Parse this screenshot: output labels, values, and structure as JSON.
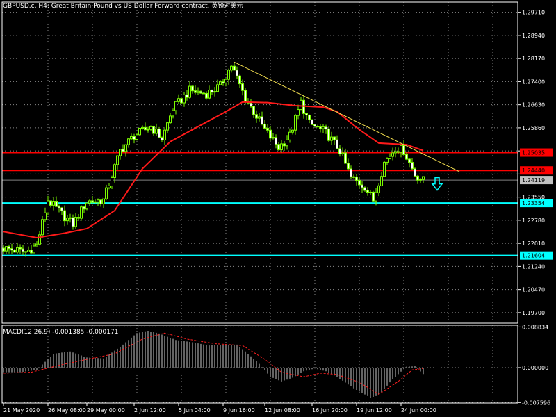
{
  "header": {
    "title": "GBPUSD.c, H4:  Great Britain Pound vs US Dollar Forward contract, 英镑对美元"
  },
  "chart_data": [
    {
      "type": "candlestick",
      "title": "GBPUSD.c, H4:  Great Britain Pound vs US Dollar Forward contract, 英镑对美元",
      "ylim": [
        1.1935,
        1.3005
      ],
      "grid": true,
      "y_ticks": [
        {
          "value": 1.2971,
          "label": "1.29710"
        },
        {
          "value": 1.2894,
          "label": "1.28940"
        },
        {
          "value": 1.2817,
          "label": "1.28170"
        },
        {
          "value": 1.274,
          "label": "1.27400"
        },
        {
          "value": 1.2663,
          "label": "1.26630"
        },
        {
          "value": 1.2586,
          "label": "1.25860"
        },
        {
          "value": 1.2509,
          "label": ""
        },
        {
          "value": 1.2432,
          "label": ""
        },
        {
          "value": 1.2355,
          "label": "1.23550"
        },
        {
          "value": 1.2278,
          "label": "1.22780"
        },
        {
          "value": 1.2201,
          "label": "1.22010"
        },
        {
          "value": 1.2124,
          "label": "1.21240"
        },
        {
          "value": 1.2047,
          "label": "1.20470"
        },
        {
          "value": 1.197,
          "label": "1.19700"
        }
      ],
      "x_ticks": [
        "21 May 2020",
        "26 May 08:00",
        "29 May 00:00",
        "2 Jun 12:00",
        "5 Jun 04:00",
        "9 Jun 16:00",
        "12 Jun 08:00",
        "16 Jun 20:00",
        "19 Jun 12:00",
        "24 Jun 00:00"
      ],
      "close_path": [
        {
          "bar": 0,
          "price": 1.2185
        },
        {
          "bar": 8,
          "price": 1.2172
        },
        {
          "bar": 12,
          "price": 1.2195
        },
        {
          "bar": 16,
          "price": 1.2345
        },
        {
          "bar": 22,
          "price": 1.229
        },
        {
          "bar": 25,
          "price": 1.2265
        },
        {
          "bar": 30,
          "price": 1.234
        },
        {
          "bar": 36,
          "price": 1.2345
        },
        {
          "bar": 42,
          "price": 1.251
        },
        {
          "bar": 47,
          "price": 1.256
        },
        {
          "bar": 53,
          "price": 1.259
        },
        {
          "bar": 57,
          "price": 1.255
        },
        {
          "bar": 61,
          "price": 1.265
        },
        {
          "bar": 67,
          "price": 1.271
        },
        {
          "bar": 73,
          "price": 1.27
        },
        {
          "bar": 78,
          "price": 1.2725
        },
        {
          "bar": 82,
          "price": 1.2795
        },
        {
          "bar": 87,
          "price": 1.2685
        },
        {
          "bar": 94,
          "price": 1.258
        },
        {
          "bar": 99,
          "price": 1.252
        },
        {
          "bar": 103,
          "price": 1.256
        },
        {
          "bar": 107,
          "price": 1.267
        },
        {
          "bar": 110,
          "price": 1.26
        },
        {
          "bar": 116,
          "price": 1.257
        },
        {
          "bar": 121,
          "price": 1.251
        },
        {
          "bar": 125,
          "price": 1.242
        },
        {
          "bar": 130,
          "price": 1.239
        },
        {
          "bar": 133,
          "price": 1.2345
        },
        {
          "bar": 137,
          "price": 1.247
        },
        {
          "bar": 141,
          "price": 1.252
        },
        {
          "bar": 144,
          "price": 1.251
        },
        {
          "bar": 148,
          "price": 1.243
        },
        {
          "bar": 151,
          "price": 1.2411
        }
      ],
      "moving_average": [
        {
          "bar": 0,
          "price": 1.224
        },
        {
          "bar": 12,
          "price": 1.222
        },
        {
          "bar": 22,
          "price": 1.2235
        },
        {
          "bar": 30,
          "price": 1.225
        },
        {
          "bar": 40,
          "price": 1.231
        },
        {
          "bar": 50,
          "price": 1.245
        },
        {
          "bar": 60,
          "price": 1.254
        },
        {
          "bar": 70,
          "price": 1.259
        },
        {
          "bar": 80,
          "price": 1.264
        },
        {
          "bar": 86,
          "price": 1.2672
        },
        {
          "bar": 95,
          "price": 1.267
        },
        {
          "bar": 105,
          "price": 1.266
        },
        {
          "bar": 115,
          "price": 1.2655
        },
        {
          "bar": 120,
          "price": 1.264
        },
        {
          "bar": 128,
          "price": 1.258
        },
        {
          "bar": 135,
          "price": 1.2535
        },
        {
          "bar": 145,
          "price": 1.253
        },
        {
          "bar": 151,
          "price": 1.251
        }
      ],
      "trendline": {
        "start": {
          "bar": 83,
          "price": 1.2805
        },
        "end": {
          "bar": 164,
          "price": 1.244
        }
      },
      "horizontal_lines": [
        {
          "price": 1.25035,
          "label": "1.25035",
          "color": "#ff0000"
        },
        {
          "price": 1.2444,
          "label": "1.24440",
          "color": "#ff0000"
        },
        {
          "price": 1.23354,
          "label": "1.23354",
          "color": "#00ffff"
        },
        {
          "price": 1.21604,
          "label": "1.21604",
          "color": "#00ffff"
        }
      ],
      "current_price": {
        "price": 1.24119,
        "label": "1.24119",
        "color": "#c0c0c0"
      },
      "signal": {
        "direction": "down",
        "color": "#00ffff"
      }
    },
    {
      "type": "bar",
      "title": "MACD(12,26,9) -0.001385 -0.000171",
      "ylim": [
        -0.0077,
        0.0092
      ],
      "y_ticks": [
        {
          "value": 0.008834,
          "label": "0.008834"
        },
        {
          "value": 0.0,
          "label": "0.000000"
        },
        {
          "value": -0.007596,
          "label": "-0.007596"
        }
      ],
      "histogram_path": [
        {
          "bar": 0,
          "value": -0.001
        },
        {
          "bar": 6,
          "value": -0.001
        },
        {
          "bar": 12,
          "value": -0.0005
        },
        {
          "bar": 18,
          "value": 0.003
        },
        {
          "bar": 24,
          "value": 0.0035
        },
        {
          "bar": 30,
          "value": 0.0022
        },
        {
          "bar": 36,
          "value": 0.002
        },
        {
          "bar": 42,
          "value": 0.0045
        },
        {
          "bar": 48,
          "value": 0.0075
        },
        {
          "bar": 52,
          "value": 0.008
        },
        {
          "bar": 56,
          "value": 0.0074
        },
        {
          "bar": 62,
          "value": 0.006
        },
        {
          "bar": 68,
          "value": 0.0055
        },
        {
          "bar": 74,
          "value": 0.0048
        },
        {
          "bar": 80,
          "value": 0.005
        },
        {
          "bar": 84,
          "value": 0.005
        },
        {
          "bar": 88,
          "value": 0.003
        },
        {
          "bar": 92,
          "value": 0.0008
        },
        {
          "bar": 96,
          "value": -0.002
        },
        {
          "bar": 100,
          "value": -0.003
        },
        {
          "bar": 104,
          "value": -0.0022
        },
        {
          "bar": 108,
          "value": -0.0008
        },
        {
          "bar": 112,
          "value": -0.0002
        },
        {
          "bar": 116,
          "value": -0.0008
        },
        {
          "bar": 120,
          "value": -0.002
        },
        {
          "bar": 126,
          "value": -0.0045
        },
        {
          "bar": 132,
          "value": -0.0065
        },
        {
          "bar": 135,
          "value": -0.006
        },
        {
          "bar": 140,
          "value": -0.0025
        },
        {
          "bar": 145,
          "value": 0.0002
        },
        {
          "bar": 148,
          "value": 0.0003
        },
        {
          "bar": 151,
          "value": -0.0014
        }
      ],
      "signal_path": [
        {
          "bar": 0,
          "value": -0.0012
        },
        {
          "bar": 10,
          "value": -0.001
        },
        {
          "bar": 20,
          "value": 0.0005
        },
        {
          "bar": 30,
          "value": 0.0018
        },
        {
          "bar": 40,
          "value": 0.003
        },
        {
          "bar": 50,
          "value": 0.0062
        },
        {
          "bar": 58,
          "value": 0.0075
        },
        {
          "bar": 66,
          "value": 0.0062
        },
        {
          "bar": 76,
          "value": 0.0052
        },
        {
          "bar": 86,
          "value": 0.0048
        },
        {
          "bar": 94,
          "value": 0.0018
        },
        {
          "bar": 100,
          "value": -0.001
        },
        {
          "bar": 108,
          "value": -0.002
        },
        {
          "bar": 114,
          "value": -0.0012
        },
        {
          "bar": 120,
          "value": -0.0015
        },
        {
          "bar": 128,
          "value": -0.0032
        },
        {
          "bar": 135,
          "value": -0.0058
        },
        {
          "bar": 142,
          "value": -0.003
        },
        {
          "bar": 147,
          "value": -0.0005
        },
        {
          "bar": 151,
          "value": -0.0002
        }
      ]
    }
  ]
}
